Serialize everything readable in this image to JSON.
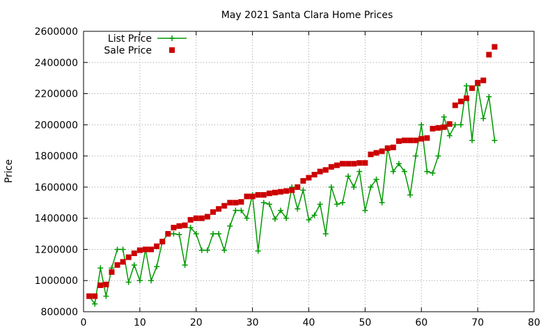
{
  "chart_data": {
    "type": "line",
    "title": "May 2021 Santa Clara Home Prices",
    "xlabel": "",
    "ylabel": "Price",
    "xlim": [
      0,
      80
    ],
    "ylim": [
      800000,
      2600000
    ],
    "x_ticks": [
      0,
      10,
      20,
      30,
      40,
      50,
      60,
      70,
      80
    ],
    "y_ticks": [
      800000,
      1000000,
      1200000,
      1400000,
      1600000,
      1800000,
      2000000,
      2200000,
      2400000,
      2600000
    ],
    "grid": true,
    "legend_position": "top-left",
    "series": [
      {
        "name": "List Price",
        "style": "line-with-plus-markers",
        "color": "#009900",
        "points": [
          [
            1,
            900000
          ],
          [
            2,
            850000
          ],
          [
            3,
            1080000
          ],
          [
            4,
            900000
          ],
          [
            5,
            1080000
          ],
          [
            6,
            1200000
          ],
          [
            7,
            1200000
          ],
          [
            8,
            990000
          ],
          [
            9,
            1100000
          ],
          [
            10,
            1000000
          ],
          [
            11,
            1200000
          ],
          [
            12,
            1000000
          ],
          [
            13,
            1090000
          ],
          [
            14,
            1250000
          ],
          [
            15,
            1300000
          ],
          [
            16,
            1300000
          ],
          [
            17,
            1295000
          ],
          [
            18,
            1100000
          ],
          [
            19,
            1340000
          ],
          [
            20,
            1300000
          ],
          [
            21,
            1195000
          ],
          [
            22,
            1195000
          ],
          [
            23,
            1300000
          ],
          [
            24,
            1300000
          ],
          [
            25,
            1195000
          ],
          [
            26,
            1350000
          ],
          [
            27,
            1450000
          ],
          [
            28,
            1450000
          ],
          [
            29,
            1400000
          ],
          [
            30,
            1550000
          ],
          [
            31,
            1190000
          ],
          [
            32,
            1500000
          ],
          [
            33,
            1490000
          ],
          [
            34,
            1395000
          ],
          [
            35,
            1450000
          ],
          [
            36,
            1400000
          ],
          [
            37,
            1600000
          ],
          [
            38,
            1460000
          ],
          [
            39,
            1580000
          ],
          [
            40,
            1390000
          ],
          [
            41,
            1420000
          ],
          [
            42,
            1490000
          ],
          [
            43,
            1300000
          ],
          [
            44,
            1600000
          ],
          [
            45,
            1490000
          ],
          [
            46,
            1500000
          ],
          [
            47,
            1670000
          ],
          [
            48,
            1600000
          ],
          [
            49,
            1700000
          ],
          [
            50,
            1450000
          ],
          [
            51,
            1600000
          ],
          [
            52,
            1650000
          ],
          [
            53,
            1500000
          ],
          [
            54,
            1850000
          ],
          [
            55,
            1700000
          ],
          [
            56,
            1750000
          ],
          [
            57,
            1700000
          ],
          [
            58,
            1550000
          ],
          [
            59,
            1800000
          ],
          [
            60,
            2000000
          ],
          [
            61,
            1700000
          ],
          [
            62,
            1690000
          ],
          [
            63,
            1800000
          ],
          [
            64,
            2050000
          ],
          [
            65,
            1930000
          ],
          [
            66,
            2000000
          ],
          [
            67,
            2000000
          ],
          [
            68,
            2250000
          ],
          [
            69,
            1900000
          ],
          [
            70,
            2250000
          ],
          [
            71,
            2040000
          ],
          [
            72,
            2180000
          ],
          [
            73,
            1900000
          ]
        ]
      },
      {
        "name": "Sale Price",
        "style": "square-markers",
        "color": "#cc0000",
        "points": [
          [
            1,
            900000
          ],
          [
            2,
            900000
          ],
          [
            3,
            970000
          ],
          [
            4,
            975000
          ],
          [
            5,
            1055000
          ],
          [
            6,
            1100000
          ],
          [
            7,
            1120000
          ],
          [
            8,
            1150000
          ],
          [
            9,
            1175000
          ],
          [
            10,
            1195000
          ],
          [
            11,
            1200000
          ],
          [
            12,
            1200000
          ],
          [
            13,
            1220000
          ],
          [
            14,
            1250000
          ],
          [
            15,
            1300000
          ],
          [
            16,
            1340000
          ],
          [
            17,
            1350000
          ],
          [
            18,
            1355000
          ],
          [
            19,
            1390000
          ],
          [
            20,
            1400000
          ],
          [
            21,
            1400000
          ],
          [
            22,
            1410000
          ],
          [
            23,
            1440000
          ],
          [
            24,
            1460000
          ],
          [
            25,
            1480000
          ],
          [
            26,
            1500000
          ],
          [
            27,
            1500000
          ],
          [
            28,
            1505000
          ],
          [
            29,
            1540000
          ],
          [
            30,
            1540000
          ],
          [
            31,
            1550000
          ],
          [
            32,
            1550000
          ],
          [
            33,
            1560000
          ],
          [
            34,
            1565000
          ],
          [
            35,
            1570000
          ],
          [
            36,
            1575000
          ],
          [
            37,
            1580000
          ],
          [
            38,
            1600000
          ],
          [
            39,
            1640000
          ],
          [
            40,
            1660000
          ],
          [
            41,
            1680000
          ],
          [
            42,
            1700000
          ],
          [
            43,
            1710000
          ],
          [
            44,
            1730000
          ],
          [
            45,
            1740000
          ],
          [
            46,
            1750000
          ],
          [
            47,
            1750000
          ],
          [
            48,
            1750000
          ],
          [
            49,
            1755000
          ],
          [
            50,
            1755000
          ],
          [
            51,
            1810000
          ],
          [
            52,
            1820000
          ],
          [
            53,
            1830000
          ],
          [
            54,
            1850000
          ],
          [
            55,
            1855000
          ],
          [
            56,
            1895000
          ],
          [
            57,
            1900000
          ],
          [
            58,
            1900000
          ],
          [
            59,
            1900000
          ],
          [
            60,
            1910000
          ],
          [
            61,
            1915000
          ],
          [
            62,
            1975000
          ],
          [
            63,
            1980000
          ],
          [
            64,
            1985000
          ],
          [
            65,
            2005000
          ],
          [
            66,
            2125000
          ],
          [
            67,
            2150000
          ],
          [
            68,
            2170000
          ],
          [
            69,
            2235000
          ],
          [
            70,
            2270000
          ],
          [
            71,
            2285000
          ],
          [
            72,
            2450000
          ],
          [
            73,
            2500000
          ]
        ]
      }
    ]
  }
}
